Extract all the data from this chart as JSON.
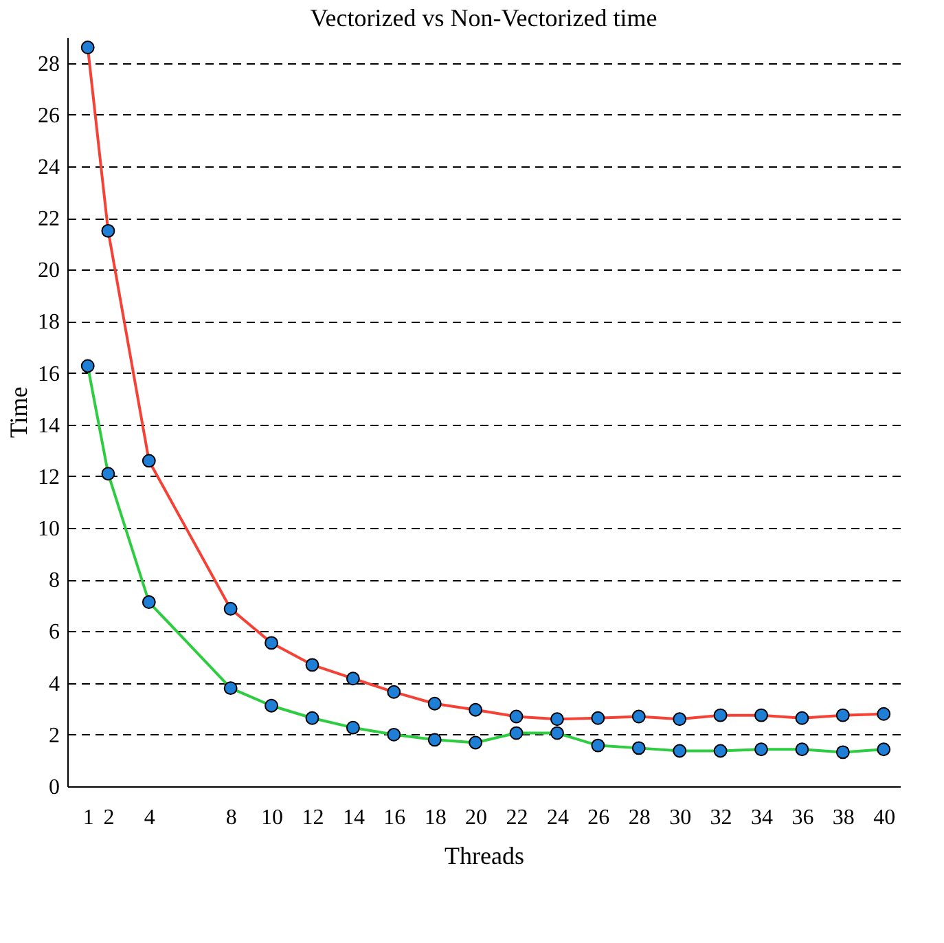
{
  "chart_data": {
    "type": "line",
    "title": "Vectorized vs Non-Vectorized time",
    "xlabel": "Threads",
    "ylabel": "Time",
    "x": [
      1,
      2,
      4,
      8,
      10,
      12,
      14,
      16,
      18,
      20,
      22,
      24,
      26,
      28,
      30,
      32,
      34,
      36,
      38,
      40
    ],
    "series": [
      {
        "color": "#f44336",
        "values": [
          28.6,
          21.5,
          12.6,
          6.87,
          5.55,
          4.7,
          4.17,
          3.65,
          3.2,
          2.96,
          2.7,
          2.6,
          2.64,
          2.7,
          2.6,
          2.75,
          2.75,
          2.64,
          2.75,
          2.8
        ]
      },
      {
        "color": "#2ecc40",
        "values": [
          16.27,
          12.1,
          7.13,
          3.8,
          3.12,
          2.64,
          2.27,
          2.0,
          1.8,
          1.69,
          2.06,
          2.06,
          1.58,
          1.48,
          1.37,
          1.37,
          1.43,
          1.43,
          1.32,
          1.43
        ]
      }
    ],
    "xlim": [
      0,
      40.8
    ],
    "xticks": [
      1,
      2,
      4,
      8,
      10,
      12,
      14,
      16,
      18,
      20,
      22,
      24,
      26,
      28,
      30,
      32,
      34,
      36,
      38,
      40
    ],
    "ylim": [
      0,
      29
    ],
    "yticks": [
      0,
      2,
      4,
      6,
      8,
      10,
      12,
      14,
      16,
      18,
      20,
      22,
      24,
      26,
      28
    ],
    "grid": "y",
    "marker": "circle",
    "line_style": "solid",
    "legend": false
  }
}
